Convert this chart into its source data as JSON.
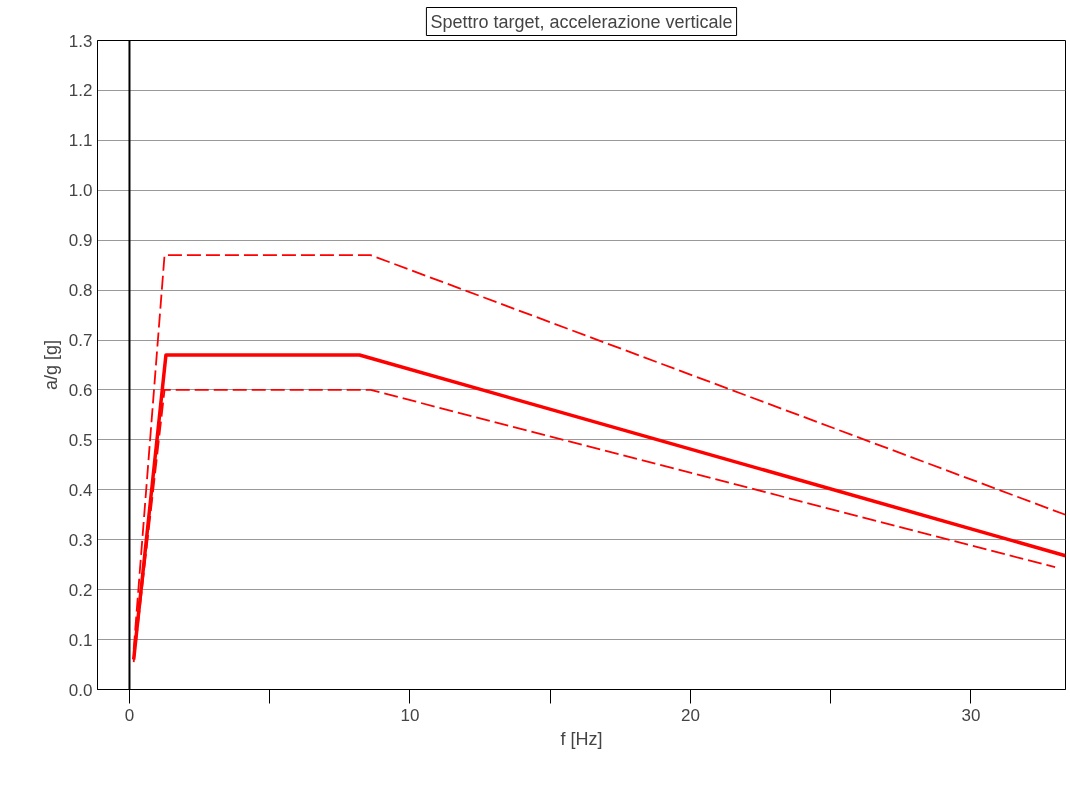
{
  "chart_data": {
    "type": "line",
    "title": "Spettro target, accelerazione verticale",
    "xlabel": "f [Hz]",
    "ylabel": "a/g [g]",
    "xlim": [
      -1.14,
      33.37
    ],
    "ylim": [
      0,
      1.3
    ],
    "xticks": [
      0,
      {
        "value": 5,
        "label": null
      },
      10,
      {
        "value": 15,
        "label": null
      },
      20,
      {
        "value": 25,
        "label": null
      },
      30
    ],
    "yticks": [
      {
        "value": 0,
        "label": "0.0"
      },
      0.1,
      0.2,
      0.3,
      0.4,
      0.5,
      0.6,
      0.7,
      0.8,
      0.9,
      {
        "value": 1,
        "label": "1.0"
      },
      1.1,
      1.2,
      1.3
    ],
    "grid": "y",
    "marker": "none",
    "ref_lines": [
      {
        "axis": "x",
        "value": 0,
        "label": null,
        "color": "#000000"
      }
    ],
    "series": [
      {
        "color": "#ff0000",
        "line_style": "solid",
        "x": [
          0.15,
          1.3,
          8.2,
          33.37
        ],
        "values": [
          0.06,
          0.67,
          0.67,
          0.268
        ]
      },
      {
        "color": "#ff0000",
        "line_style": "dashed",
        "x": [
          0.15,
          1.25,
          8.6,
          33.37
        ],
        "values": [
          0.08,
          0.87,
          0.87,
          0.35
        ]
      },
      {
        "color": "#ff0000",
        "line_style": "dashed",
        "x": [
          0.15,
          1.25,
          8.6,
          33.0
        ],
        "values": [
          0.055,
          0.6,
          0.6,
          0.245
        ]
      }
    ]
  }
}
